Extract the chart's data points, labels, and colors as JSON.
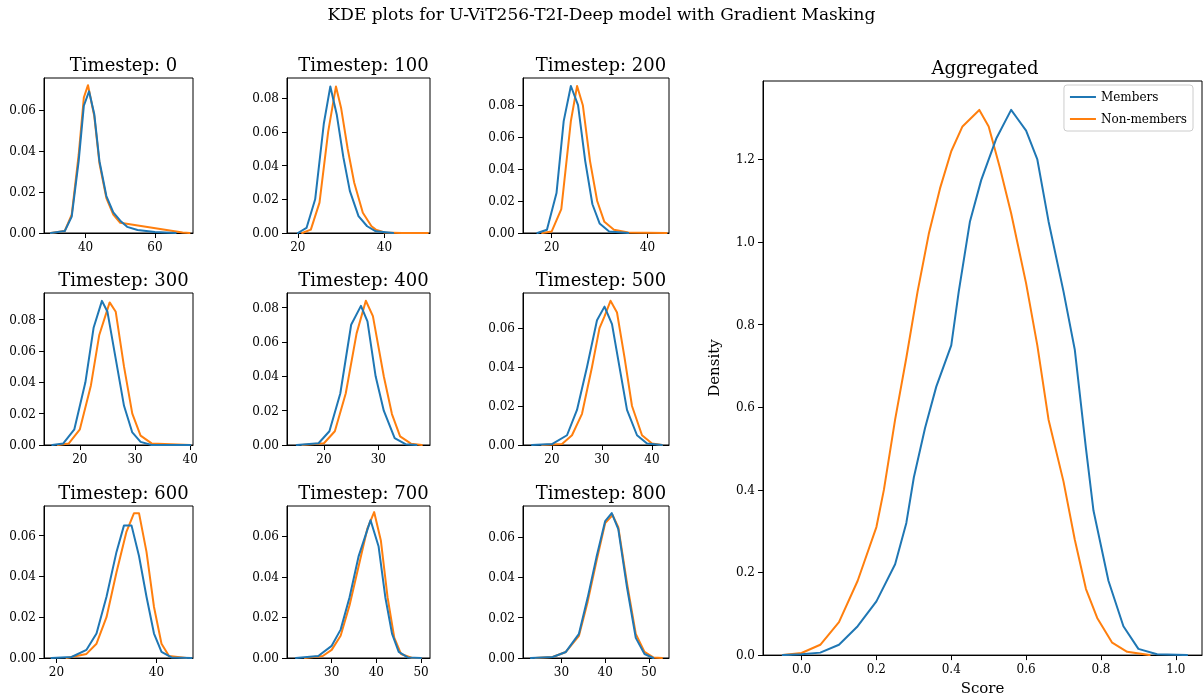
{
  "chart_data": [
    {
      "type": "line",
      "title": "Timestep: 0",
      "annotations": [
        "KDE plots for U-ViT256-T2I-Deep model with Gradient Masking"
      ],
      "line_style": "solid",
      "xlim": [
        28,
        71
      ],
      "xticks": [
        40,
        60
      ],
      "ylim": [
        0,
        0.0755
      ],
      "yticks": [
        {
          "value": 0,
          "label": "0.00"
        },
        {
          "value": 0.02,
          "label": "0.02"
        },
        {
          "value": 0.04,
          "label": "0.04"
        },
        {
          "value": 0.06,
          "label": "0.06"
        }
      ],
      "series": [
        {
          "color": "#1f77b4",
          "x": [
            30,
            34,
            36,
            38,
            39.5,
            41,
            42.5,
            44,
            46,
            48,
            50,
            52,
            55,
            60,
            66
          ],
          "values": [
            0,
            0.001,
            0.008,
            0.035,
            0.062,
            0.069,
            0.058,
            0.035,
            0.018,
            0.01,
            0.006,
            0.003,
            0.0015,
            0.0005,
            0
          ]
        },
        {
          "color": "#ff7f0e",
          "x": [
            30,
            34,
            36,
            38,
            39.5,
            40.7,
            42.5,
            44,
            46,
            48,
            50,
            68,
            70
          ],
          "values": [
            0,
            0.001,
            0.009,
            0.038,
            0.066,
            0.072,
            0.057,
            0.034,
            0.017,
            0.009,
            0.005,
            0.0002,
            0
          ]
        }
      ]
    },
    {
      "type": "line",
      "title": "Timestep: 100",
      "line_style": "solid",
      "xlim": [
        17.5,
        50.5
      ],
      "xticks": [
        20,
        40
      ],
      "ylim": [
        0,
        0.092
      ],
      "yticks": [
        {
          "value": 0,
          "label": "0.00"
        },
        {
          "value": 0.02,
          "label": "0.02"
        },
        {
          "value": 0.04,
          "label": "0.04"
        },
        {
          "value": 0.06,
          "label": "0.06"
        },
        {
          "value": 0.08,
          "label": "0.08"
        }
      ],
      "series": [
        {
          "color": "#1f77b4",
          "x": [
            20,
            22,
            24,
            26,
            27.5,
            29,
            30.5,
            32,
            34,
            36,
            38,
            42
          ],
          "values": [
            0,
            0.003,
            0.02,
            0.065,
            0.087,
            0.07,
            0.045,
            0.025,
            0.01,
            0.004,
            0.001,
            0
          ]
        },
        {
          "color": "#ff7f0e",
          "x": [
            21,
            23,
            25,
            27,
            28.8,
            30,
            31.5,
            33,
            35,
            37,
            38,
            40,
            44,
            50
          ],
          "values": [
            0,
            0.002,
            0.018,
            0.06,
            0.087,
            0.074,
            0.05,
            0.03,
            0.012,
            0.004,
            0.002,
            0.0003,
            0,
            0
          ]
        }
      ]
    },
    {
      "type": "line",
      "title": "Timestep: 200",
      "line_style": "solid",
      "xlim": [
        14,
        44.5
      ],
      "xticks": [
        20,
        40
      ],
      "ylim": [
        0,
        0.097
      ],
      "yticks": [
        {
          "value": 0,
          "label": "0.00"
        },
        {
          "value": 0.02,
          "label": "0.02"
        },
        {
          "value": 0.04,
          "label": "0.04"
        },
        {
          "value": 0.06,
          "label": "0.06"
        },
        {
          "value": 0.08,
          "label": "0.08"
        }
      ],
      "series": [
        {
          "color": "#1f77b4",
          "x": [
            17,
            19,
            21,
            22.5,
            24,
            25.5,
            27,
            28.5,
            30,
            32,
            36
          ],
          "values": [
            0,
            0.002,
            0.025,
            0.07,
            0.092,
            0.08,
            0.045,
            0.018,
            0.006,
            0.001,
            0
          ]
        },
        {
          "color": "#ff7f0e",
          "x": [
            18,
            20,
            22,
            24,
            25.3,
            26.5,
            28,
            29.5,
            31,
            33,
            36,
            44
          ],
          "values": [
            0,
            0.001,
            0.015,
            0.07,
            0.092,
            0.08,
            0.045,
            0.02,
            0.007,
            0.002,
            0.0003,
            0
          ]
        }
      ]
    },
    {
      "type": "line",
      "title": "Timestep: 300",
      "line_style": "solid",
      "xlim": [
        13.5,
        40.5
      ],
      "xticks": [
        20,
        30,
        40
      ],
      "ylim": [
        0,
        0.097
      ],
      "yticks": [
        {
          "value": 0,
          "label": "0.00"
        },
        {
          "value": 0.02,
          "label": "0.02"
        },
        {
          "value": 0.04,
          "label": "0.04"
        },
        {
          "value": 0.06,
          "label": "0.06"
        },
        {
          "value": 0.08,
          "label": "0.08"
        }
      ],
      "series": [
        {
          "color": "#1f77b4",
          "x": [
            15,
            17,
            19,
            21,
            22.5,
            24,
            25,
            26.5,
            28,
            29.5,
            31,
            33,
            40
          ],
          "values": [
            0,
            0.001,
            0.01,
            0.04,
            0.075,
            0.092,
            0.085,
            0.055,
            0.025,
            0.008,
            0.002,
            0,
            0
          ]
        },
        {
          "color": "#ff7f0e",
          "x": [
            16,
            18,
            20,
            22,
            23.5,
            25.4,
            26.5,
            28,
            29.5,
            31,
            33,
            40
          ],
          "values": [
            0,
            0.001,
            0.01,
            0.038,
            0.07,
            0.091,
            0.085,
            0.05,
            0.02,
            0.006,
            0.001,
            0
          ]
        }
      ]
    },
    {
      "type": "line",
      "title": "Timestep: 400",
      "line_style": "solid",
      "xlim": [
        13.2,
        39.5
      ],
      "xticks": [
        20,
        30
      ],
      "ylim": [
        0,
        0.0885
      ],
      "yticks": [
        {
          "value": 0,
          "label": "0.00"
        },
        {
          "value": 0.02,
          "label": "0.02"
        },
        {
          "value": 0.04,
          "label": "0.04"
        },
        {
          "value": 0.06,
          "label": "0.06"
        },
        {
          "value": 0.08,
          "label": "0.08"
        }
      ],
      "series": [
        {
          "color": "#1f77b4",
          "x": [
            15,
            19,
            21,
            23,
            25,
            26.8,
            28,
            29.5,
            31,
            33,
            35,
            37
          ],
          "values": [
            0,
            0.001,
            0.008,
            0.03,
            0.07,
            0.081,
            0.072,
            0.04,
            0.02,
            0.004,
            0.0005,
            0
          ]
        },
        {
          "color": "#ff7f0e",
          "x": [
            16,
            20,
            22,
            24,
            26,
            27.7,
            29,
            31,
            32.5,
            34,
            36,
            38
          ],
          "values": [
            0,
            0.001,
            0.008,
            0.03,
            0.065,
            0.084,
            0.075,
            0.04,
            0.018,
            0.005,
            0.0008,
            0
          ]
        }
      ]
    },
    {
      "type": "line",
      "title": "Timestep: 500",
      "line_style": "solid",
      "xlim": [
        14.2,
        43.4
      ],
      "xticks": [
        20,
        30,
        40
      ],
      "ylim": [
        0,
        0.078
      ],
      "yticks": [
        {
          "value": 0,
          "label": "0.00"
        },
        {
          "value": 0.02,
          "label": "0.02"
        },
        {
          "value": 0.04,
          "label": "0.04"
        },
        {
          "value": 0.06,
          "label": "0.06"
        }
      ],
      "series": [
        {
          "color": "#1f77b4",
          "x": [
            16,
            20,
            23,
            25,
            27,
            29,
            30.5,
            32,
            33.5,
            35,
            37,
            39,
            42
          ],
          "values": [
            0,
            0.0005,
            0.005,
            0.018,
            0.04,
            0.064,
            0.071,
            0.062,
            0.04,
            0.018,
            0.005,
            0.0008,
            0
          ]
        },
        {
          "color": "#ff7f0e",
          "x": [
            18,
            22,
            24,
            26,
            28,
            29.5,
            30.5,
            31.7,
            33,
            34.5,
            36,
            38,
            40,
            42
          ],
          "values": [
            0,
            0.0005,
            0.005,
            0.016,
            0.04,
            0.06,
            0.066,
            0.074,
            0.068,
            0.045,
            0.02,
            0.005,
            0.0008,
            0
          ]
        }
      ]
    },
    {
      "type": "line",
      "title": "Timestep: 600",
      "line_style": "solid",
      "xlim": [
        17.5,
        47.3
      ],
      "xticks": [
        20,
        40
      ],
      "ylim": [
        0,
        0.0745
      ],
      "yticks": [
        {
          "value": 0,
          "label": "0.00"
        },
        {
          "value": 0.02,
          "label": "0.02"
        },
        {
          "value": 0.04,
          "label": "0.04"
        },
        {
          "value": 0.06,
          "label": "0.06"
        }
      ],
      "series": [
        {
          "color": "#1f77b4",
          "x": [
            19,
            23,
            26,
            28,
            30,
            32,
            33.5,
            35,
            36.5,
            38,
            39.5,
            41,
            43,
            47
          ],
          "values": [
            0,
            0.0005,
            0.004,
            0.012,
            0.03,
            0.052,
            0.065,
            0.065,
            0.05,
            0.03,
            0.012,
            0.003,
            0.0003,
            0
          ]
        },
        {
          "color": "#ff7f0e",
          "x": [
            22,
            26,
            28,
            30,
            32,
            34,
            35.5,
            36.5,
            38,
            39.5,
            41,
            42.5,
            46
          ],
          "values": [
            0,
            0.002,
            0.007,
            0.02,
            0.042,
            0.062,
            0.071,
            0.071,
            0.052,
            0.025,
            0.007,
            0.001,
            0
          ]
        }
      ]
    },
    {
      "type": "line",
      "title": "Timestep: 700",
      "line_style": "solid",
      "xlim": [
        20,
        52
      ],
      "xticks": [
        30,
        40,
        50
      ],
      "ylim": [
        0,
        0.075
      ],
      "yticks": [
        {
          "value": 0,
          "label": "0.00"
        },
        {
          "value": 0.02,
          "label": "0.02"
        },
        {
          "value": 0.04,
          "label": "0.04"
        },
        {
          "value": 0.06,
          "label": "0.06"
        }
      ],
      "series": [
        {
          "color": "#1f77b4",
          "x": [
            22,
            27,
            30,
            32,
            34,
            36,
            38.7,
            40.5,
            42,
            43.5,
            45,
            47,
            50
          ],
          "values": [
            0,
            0.001,
            0.006,
            0.014,
            0.03,
            0.05,
            0.068,
            0.055,
            0.03,
            0.012,
            0.003,
            0.0003,
            0
          ]
        },
        {
          "color": "#ff7f0e",
          "x": [
            24,
            28,
            30,
            32,
            34,
            36,
            38,
            39.5,
            41,
            42.5,
            44,
            45.5,
            48,
            50
          ],
          "values": [
            0,
            0.001,
            0.004,
            0.011,
            0.026,
            0.045,
            0.064,
            0.072,
            0.058,
            0.03,
            0.01,
            0.002,
            0,
            0
          ]
        }
      ]
    },
    {
      "type": "line",
      "title": "Timestep: 800",
      "line_style": "solid",
      "xlim": [
        21.2,
        54.6
      ],
      "xticks": [
        30,
        40,
        50
      ],
      "ylim": [
        0,
        0.0755
      ],
      "yticks": [
        {
          "value": 0,
          "label": "0.00"
        },
        {
          "value": 0.02,
          "label": "0.02"
        },
        {
          "value": 0.04,
          "label": "0.04"
        },
        {
          "value": 0.06,
          "label": "0.06"
        }
      ],
      "series": [
        {
          "color": "#1f77b4",
          "x": [
            23,
            28,
            31,
            34,
            36,
            38,
            40,
            41.5,
            43,
            45,
            47,
            49,
            51
          ],
          "values": [
            0,
            0.0005,
            0.003,
            0.012,
            0.03,
            0.05,
            0.068,
            0.072,
            0.064,
            0.035,
            0.01,
            0.002,
            0
          ]
        },
        {
          "color": "#ff7f0e",
          "x": [
            24,
            28,
            31,
            34,
            36,
            38,
            40,
            41.7,
            43,
            45,
            47,
            49,
            51,
            53
          ],
          "values": [
            0,
            0.0005,
            0.003,
            0.011,
            0.028,
            0.048,
            0.067,
            0.071,
            0.065,
            0.037,
            0.012,
            0.003,
            0.0003,
            0
          ]
        }
      ]
    },
    {
      "type": "line",
      "title": "Aggregated",
      "xlabel": "Score",
      "ylabel": "Density",
      "legend": "top right",
      "line_style": "solid",
      "xlim": [
        -0.103,
        1.07
      ],
      "xticks": [
        {
          "value": 0,
          "label": "0.0"
        },
        {
          "value": 0.2,
          "label": "0.2"
        },
        {
          "value": 0.4,
          "label": "0.4"
        },
        {
          "value": 0.6,
          "label": "0.6"
        },
        {
          "value": 0.8,
          "label": "0.8"
        },
        {
          "value": 1,
          "label": "1.0"
        }
      ],
      "ylim": [
        0,
        1.39
      ],
      "yticks": [
        {
          "value": 0,
          "label": "0.0"
        },
        {
          "value": 0.2,
          "label": "0.2"
        },
        {
          "value": 0.4,
          "label": "0.4"
        },
        {
          "value": 0.6,
          "label": "0.6"
        },
        {
          "value": 0.8,
          "label": "0.8"
        },
        {
          "value": 1,
          "label": "1.0"
        },
        {
          "value": 1.2,
          "label": "1.2"
        }
      ],
      "series": [
        {
          "name": "Members",
          "color": "#1f77b4",
          "x": [
            -0.05,
            0,
            0.05,
            0.1,
            0.15,
            0.2,
            0.25,
            0.28,
            0.3,
            0.33,
            0.36,
            0.4,
            0.42,
            0.45,
            0.48,
            0.52,
            0.56,
            0.6,
            0.63,
            0.66,
            0.7,
            0.73,
            0.76,
            0.78,
            0.82,
            0.86,
            0.9,
            0.95,
            1.03
          ],
          "values": [
            0,
            0.002,
            0.006,
            0.025,
            0.07,
            0.13,
            0.22,
            0.32,
            0.43,
            0.55,
            0.65,
            0.75,
            0.88,
            1.05,
            1.15,
            1.25,
            1.32,
            1.27,
            1.2,
            1.05,
            0.88,
            0.74,
            0.5,
            0.35,
            0.18,
            0.07,
            0.015,
            0.002,
            0
          ]
        },
        {
          "name": "Non-members",
          "color": "#ff7f0e",
          "x": [
            -0.05,
            0,
            0.05,
            0.1,
            0.15,
            0.2,
            0.22,
            0.25,
            0.28,
            0.31,
            0.34,
            0.37,
            0.4,
            0.43,
            0.475,
            0.5,
            0.53,
            0.56,
            0.6,
            0.63,
            0.66,
            0.7,
            0.73,
            0.76,
            0.79,
            0.83,
            0.87,
            0.93
          ],
          "values": [
            0,
            0.005,
            0.025,
            0.08,
            0.18,
            0.31,
            0.4,
            0.57,
            0.72,
            0.88,
            1.02,
            1.13,
            1.22,
            1.28,
            1.32,
            1.28,
            1.18,
            1.07,
            0.9,
            0.75,
            0.57,
            0.42,
            0.28,
            0.16,
            0.09,
            0.03,
            0.008,
            0
          ]
        }
      ]
    }
  ]
}
